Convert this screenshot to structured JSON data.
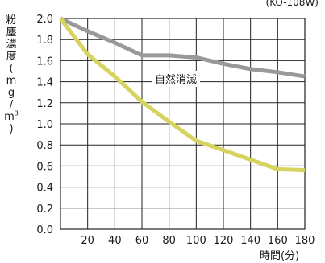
{
  "model_label": "(KO-108W)",
  "ylabel_chars": [
    "粉",
    "塵",
    "濃",
    "度",
    "(",
    "m",
    "g",
    "/",
    "m"
  ],
  "ylabel_sup": "3",
  "ylabel_close": ")",
  "xlabel": "時間(分)",
  "chart_data": {
    "type": "line",
    "xlim": [
      0,
      180
    ],
    "ylim": [
      0,
      2.0
    ],
    "x_ticks": [
      20,
      40,
      60,
      80,
      100,
      120,
      140,
      160,
      180
    ],
    "y_ticks": [
      "0.0",
      "0.2",
      "0.4",
      "0.6",
      "0.8",
      "1.0",
      "1.2",
      "1.4",
      "1.6",
      "1.8",
      "2.0"
    ],
    "grid": true,
    "series": [
      {
        "name": "自然消滅",
        "color": "#999999",
        "x": [
          0,
          20,
          40,
          60,
          80,
          100,
          120,
          140,
          160,
          180
        ],
        "y": [
          2.0,
          1.88,
          1.77,
          1.65,
          1.65,
          1.63,
          1.57,
          1.52,
          1.49,
          1.45
        ]
      },
      {
        "color": "#d6d35e",
        "x": [
          0,
          20,
          40,
          60,
          80,
          100,
          120,
          140,
          160,
          180
        ],
        "y": [
          2.0,
          1.66,
          1.45,
          1.21,
          1.02,
          0.84,
          0.75,
          0.66,
          0.57,
          0.56
        ]
      }
    ]
  }
}
